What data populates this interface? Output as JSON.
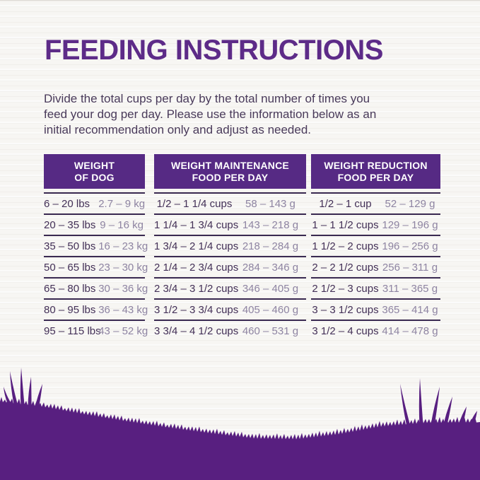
{
  "page": {
    "title": "FEEDING INSTRUCTIONS",
    "intro_lines": [
      "Divide the total cups per day by the total number of times you",
      "feed your dog per day. Please use the information below as an",
      "initial recommendation only and adjust as needed."
    ]
  },
  "table": {
    "headers": [
      {
        "line1": "WEIGHT",
        "line2": "OF DOG"
      },
      {
        "line1": "WEIGHT MAINTENANCE",
        "line2": "FOOD PER DAY"
      },
      {
        "line1": "WEIGHT REDUCTION",
        "line2": "FOOD PER DAY"
      }
    ],
    "rows": [
      {
        "lbs": "6 – 20 lbs",
        "kg": "2.7 – 9 kg",
        "maintenance_cups": "1/2 – 1 1/4 cups",
        "maintenance_g": "58 – 143 g",
        "reduction_cups": "1/2 – 1 cup",
        "reduction_g": "52 – 129 g"
      },
      {
        "lbs": "20 – 35 lbs",
        "kg": "9 – 16 kg",
        "maintenance_cups": "1 1/4 – 1 3/4 cups",
        "maintenance_g": "143 – 218 g",
        "reduction_cups": "1 – 1 1/2 cups",
        "reduction_g": "129 – 196 g"
      },
      {
        "lbs": "35 – 50 lbs",
        "kg": "16 – 23 kg",
        "maintenance_cups": "1 3/4 – 2 1/4 cups",
        "maintenance_g": "218 – 284 g",
        "reduction_cups": "1 1/2 – 2 cups",
        "reduction_g": "196 – 256 g"
      },
      {
        "lbs": "50 – 65 lbs",
        "kg": "23 – 30 kg",
        "maintenance_cups": "2 1/4 – 2 3/4 cups",
        "maintenance_g": "284 – 346 g",
        "reduction_cups": "2 – 2 1/2 cups",
        "reduction_g": "256 – 311 g"
      },
      {
        "lbs": "65 – 80 lbs",
        "kg": "30 – 36 kg",
        "maintenance_cups": "2 3/4 – 3 1/2 cups",
        "maintenance_g": "346 – 405 g",
        "reduction_cups": "2 1/2 – 3 cups",
        "reduction_g": "311 – 365 g"
      },
      {
        "lbs": "80 – 95 lbs",
        "kg": "36 – 43 kg",
        "maintenance_cups": "3 1/2 – 3 3/4 cups",
        "maintenance_g": "405 – 460 g",
        "reduction_cups": "3 – 3 1/2 cups",
        "reduction_g": "365 – 414 g"
      },
      {
        "lbs": "95 – 115 lbs",
        "kg": "43 – 52 kg",
        "maintenance_cups": "3 3/4 – 4 1/2 cups",
        "maintenance_g": "460 – 531 g",
        "reduction_cups": "3 1/2 – 4 cups",
        "reduction_g": "414 – 478 g"
      }
    ]
  },
  "colors": {
    "brand_purple": "#5d2b88",
    "header_purple": "#562a84",
    "grass_purple": "#581f80",
    "dark_text": "#433057",
    "muted_text": "#8e84a2",
    "rule_line": "#3a2a52",
    "background": "#f7f6f3"
  }
}
